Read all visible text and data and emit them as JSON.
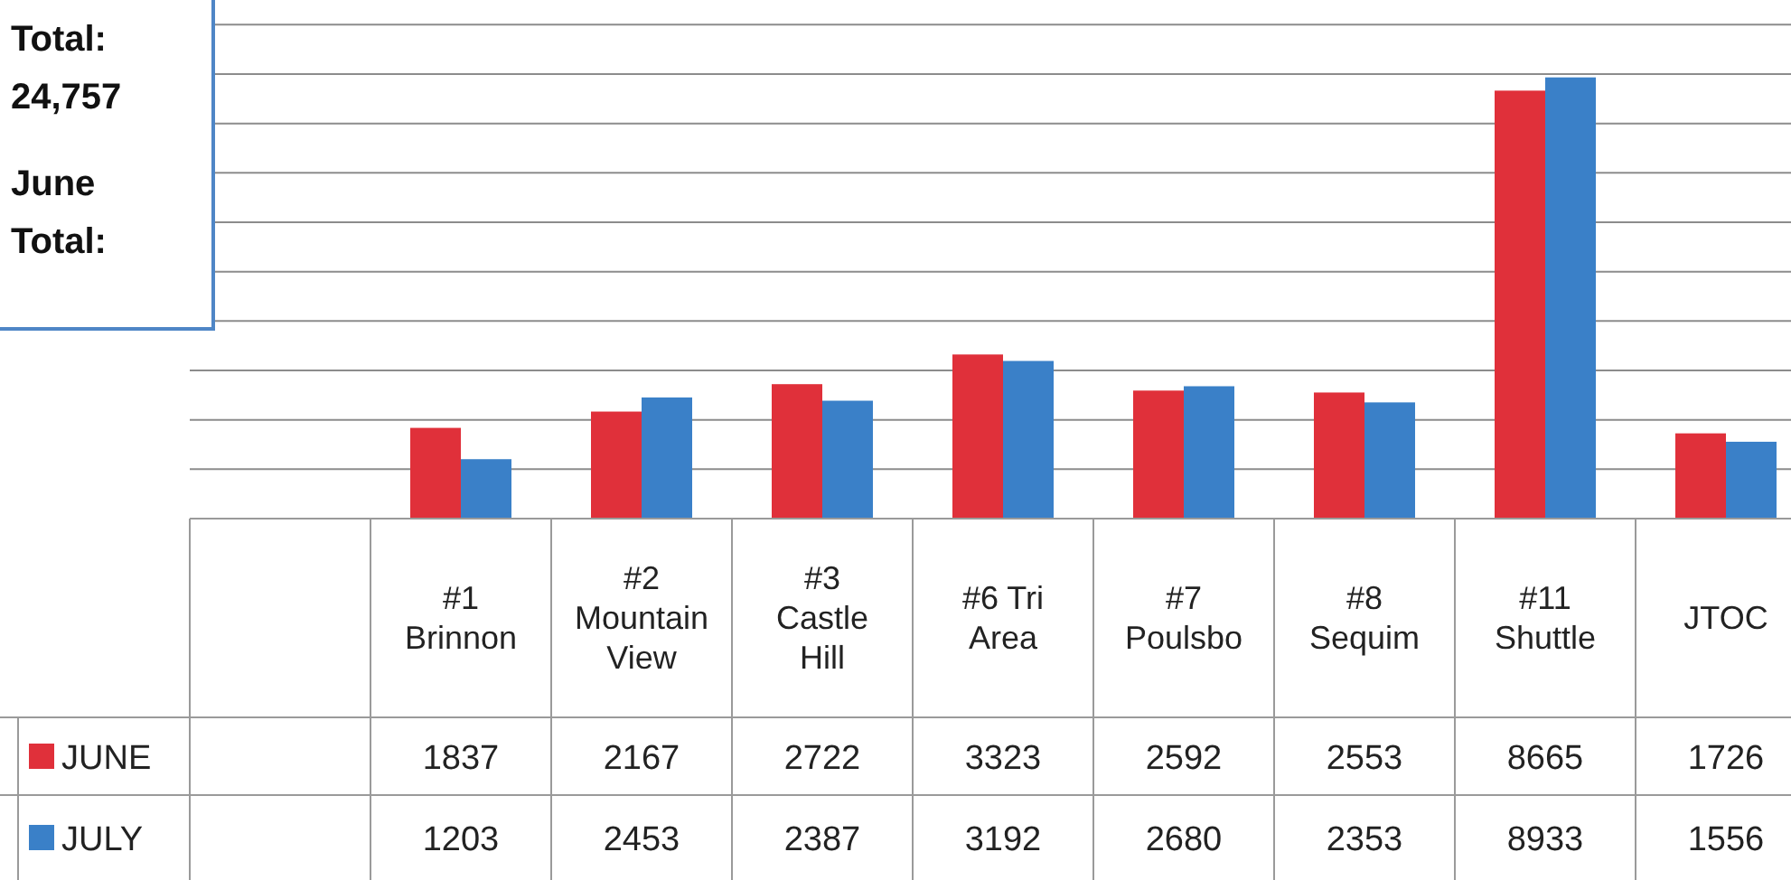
{
  "chart_data": {
    "type": "bar",
    "categories": [
      "#1 Brinnon",
      "#2 Mountain View",
      "#3 Castle Hill",
      "#6 Tri Area",
      "#7 Poulsbo",
      "#8 Sequim",
      "#11 Shuttle",
      "JTOC"
    ],
    "series": [
      {
        "name": "JUNE",
        "color": "#e0303a",
        "values": [
          1837,
          2167,
          2722,
          3323,
          2592,
          2553,
          8665,
          1726
        ]
      },
      {
        "name": "JULY",
        "color": "#3a80c8",
        "values": [
          1203,
          2453,
          2387,
          3192,
          2680,
          2353,
          8933,
          1556
        ]
      }
    ],
    "ylim": [
      0,
      10500
    ],
    "yticks": [
      {
        "value": 0,
        "label": null
      },
      {
        "value": 1000,
        "label": null
      },
      {
        "value": 2000,
        "label": null
      },
      {
        "value": 3000,
        "label": null
      },
      {
        "value": 4000,
        "label": null
      },
      {
        "value": 5000,
        "label": null
      },
      {
        "value": 6000,
        "label": null
      },
      {
        "value": 7000,
        "label": null
      },
      {
        "value": 8000,
        "label": null
      },
      {
        "value": 9000,
        "label": null
      },
      {
        "value": 10000,
        "label": null
      }
    ],
    "grid": "y",
    "data_labels": true,
    "legend": "bottom left",
    "annotations": [
      "Total: 24,757",
      "June Total:"
    ]
  }
}
